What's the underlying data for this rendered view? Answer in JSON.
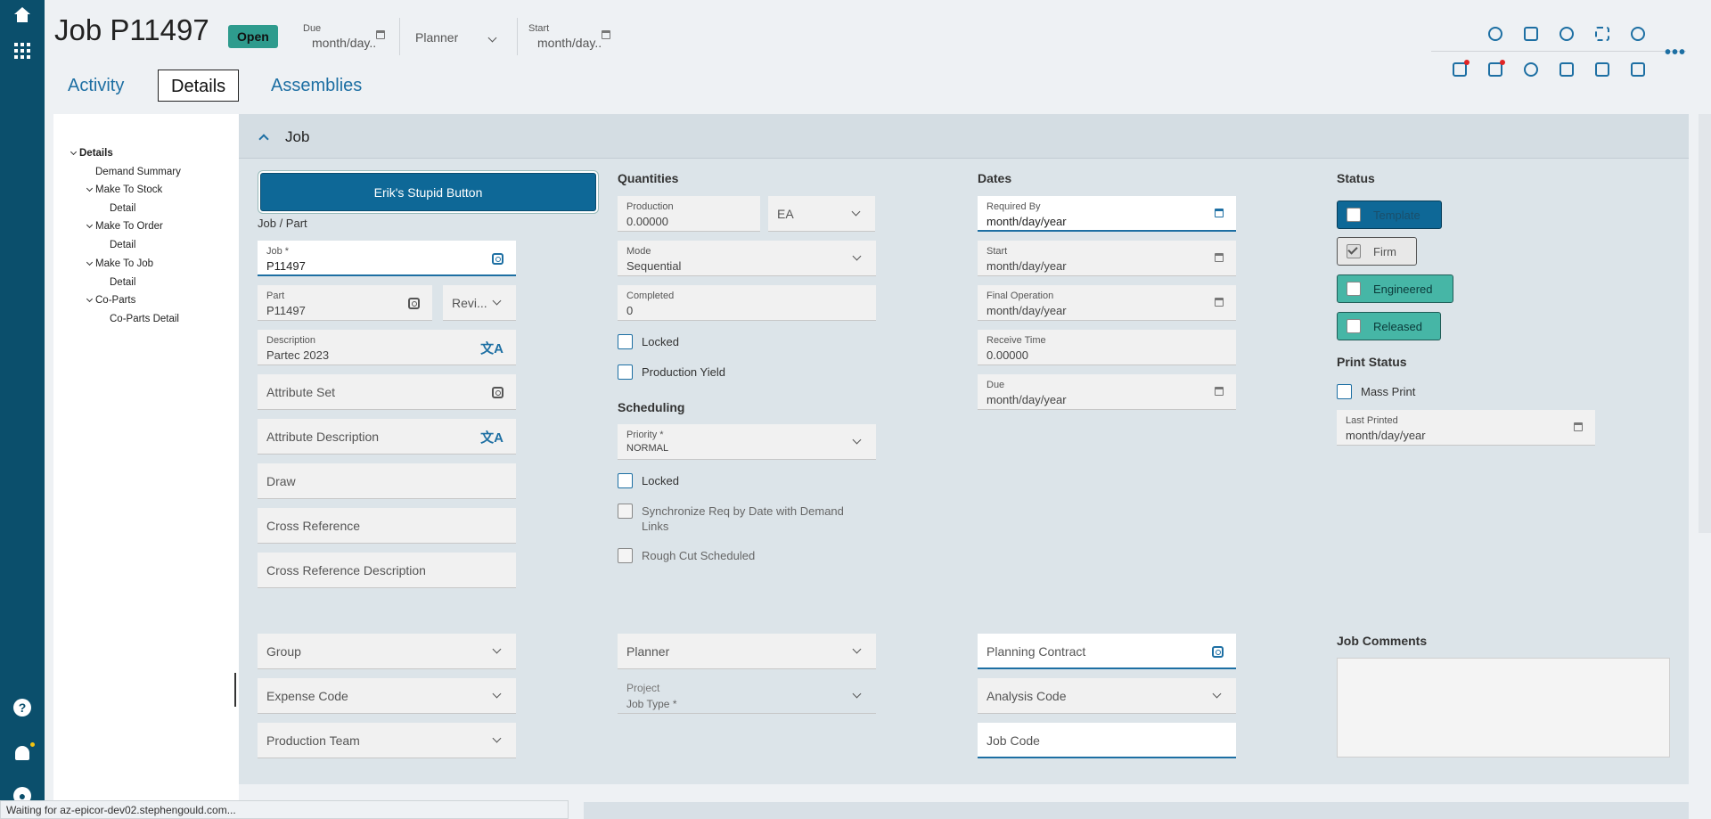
{
  "header": {
    "title": "Job P11497",
    "status_badge": "Open",
    "due": {
      "label": "Due",
      "value": "month/day..."
    },
    "planner": {
      "value": "Planner"
    },
    "start": {
      "label": "Start",
      "value": "month/day..."
    },
    "more": "•••"
  },
  "tabs": [
    "Activity",
    "Details",
    "Assemblies"
  ],
  "tree": {
    "items": [
      {
        "label": "Details"
      },
      {
        "label": "Demand Summary"
      },
      {
        "label": "Make To Stock"
      },
      {
        "label": "Detail"
      },
      {
        "label": "Make To Order"
      },
      {
        "label": "Detail"
      },
      {
        "label": "Make To Job"
      },
      {
        "label": "Detail"
      },
      {
        "label": "Co-Parts"
      },
      {
        "label": "Co-Parts Detail"
      }
    ]
  },
  "panel": {
    "title": "Job",
    "custom_button": "Erik's Stupid Button",
    "job_part": {
      "section": "Job / Part",
      "job": {
        "label": "Job *",
        "value": "P11497"
      },
      "part": {
        "label": "Part",
        "value": "P11497"
      },
      "revision": {
        "value": "Revi..."
      },
      "description": {
        "label": "Description",
        "value": "Partec 2023"
      },
      "attribute_set": "Attribute Set",
      "attribute_description": "Attribute Description",
      "draw": "Draw",
      "cross_reference": "Cross Reference",
      "cross_reference_description": "Cross Reference Description"
    },
    "quantities": {
      "section": "Quantities",
      "production": {
        "label": "Production",
        "value": "0.00000"
      },
      "uom": "EA",
      "mode": {
        "label": "Mode",
        "value": "Sequential"
      },
      "completed": {
        "label": "Completed",
        "value": "0"
      },
      "locked": "Locked",
      "production_yield": "Production Yield"
    },
    "scheduling": {
      "section": "Scheduling",
      "priority": {
        "label": "Priority *",
        "value": "NORMAL"
      },
      "locked": "Locked",
      "sync_req": "Synchronize Req by Date with Demand Links",
      "rough_cut": "Rough Cut Scheduled"
    },
    "dates": {
      "section": "Dates",
      "required_by": {
        "label": "Required By",
        "value": "month/day/year"
      },
      "start": {
        "label": "Start",
        "value": "month/day/year"
      },
      "final_operation": {
        "label": "Final Operation",
        "value": "month/day/year"
      },
      "receive_time": {
        "label": "Receive Time",
        "value": "0.00000"
      },
      "due": {
        "label": "Due",
        "value": "month/day/year"
      }
    },
    "status": {
      "section": "Status",
      "template": "Template",
      "firm": "Firm",
      "engineered": "Engineered",
      "released": "Released"
    },
    "print_status": {
      "section": "Print Status",
      "mass_print": "Mass Print",
      "last_printed": {
        "label": "Last Printed",
        "value": "month/day/year"
      }
    },
    "bottom": {
      "group": "Group",
      "expense_code": "Expense Code",
      "production_team": "Production Team",
      "planner": "Planner",
      "project": "Project",
      "job_type": "Job Type *",
      "planning_contract": "Planning Contract",
      "analysis_code": "Analysis Code",
      "job_code": "Job Code",
      "job_comments": "Job Comments"
    }
  },
  "statusbar": "Waiting for az-epicor-dev02.stephengould.com...",
  "colors": {
    "rail": "#0b4f6c",
    "accent": "#1d6fa3",
    "badge": "#2e9b8d",
    "button": "#0e6897",
    "teal_status": "#46b6a6"
  }
}
